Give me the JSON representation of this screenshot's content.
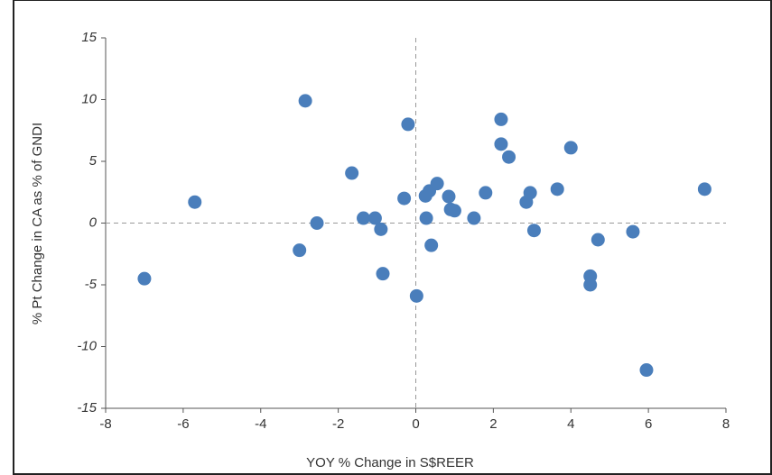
{
  "chart_data": {
    "type": "scatter",
    "x_label": "YOY % Change  in S$REER",
    "y_label": "% Pt Change  in CA  as % of GNDI",
    "xlim": [
      -8,
      8
    ],
    "xticks": [
      -8,
      -6,
      -4,
      -2,
      0,
      2,
      4,
      6,
      8
    ],
    "ylim": [
      -15,
      15
    ],
    "yticks": [
      15,
      10,
      5,
      0,
      -5,
      -10,
      -15
    ],
    "zero_lines": true,
    "series": [
      {
        "color": "#4a7ebb",
        "x": [
          -7.0,
          -5.7,
          -2.85,
          -3.0,
          -2.55,
          -1.65,
          -1.35,
          -1.05,
          -0.9,
          -0.85,
          -0.2,
          -0.3,
          0.02,
          0.25,
          0.35,
          0.27,
          0.4,
          0.55,
          0.85,
          0.9,
          1.0,
          1.5,
          1.8,
          2.2,
          2.2,
          2.4,
          2.85,
          2.95,
          3.05,
          3.65,
          4.0,
          4.5,
          4.5,
          4.7,
          5.6,
          5.95,
          7.45
        ],
        "y": [
          -4.5,
          1.7,
          9.9,
          -2.2,
          0.0,
          4.05,
          0.4,
          0.4,
          -0.5,
          -4.1,
          8.0,
          2.0,
          -5.9,
          2.2,
          2.6,
          0.4,
          -1.8,
          3.2,
          2.15,
          1.1,
          1.0,
          0.4,
          2.45,
          8.4,
          6.4,
          5.35,
          1.7,
          2.45,
          -0.6,
          2.75,
          6.1,
          -4.3,
          -5.0,
          -1.35,
          -0.7,
          -11.9,
          2.75
        ]
      }
    ]
  }
}
